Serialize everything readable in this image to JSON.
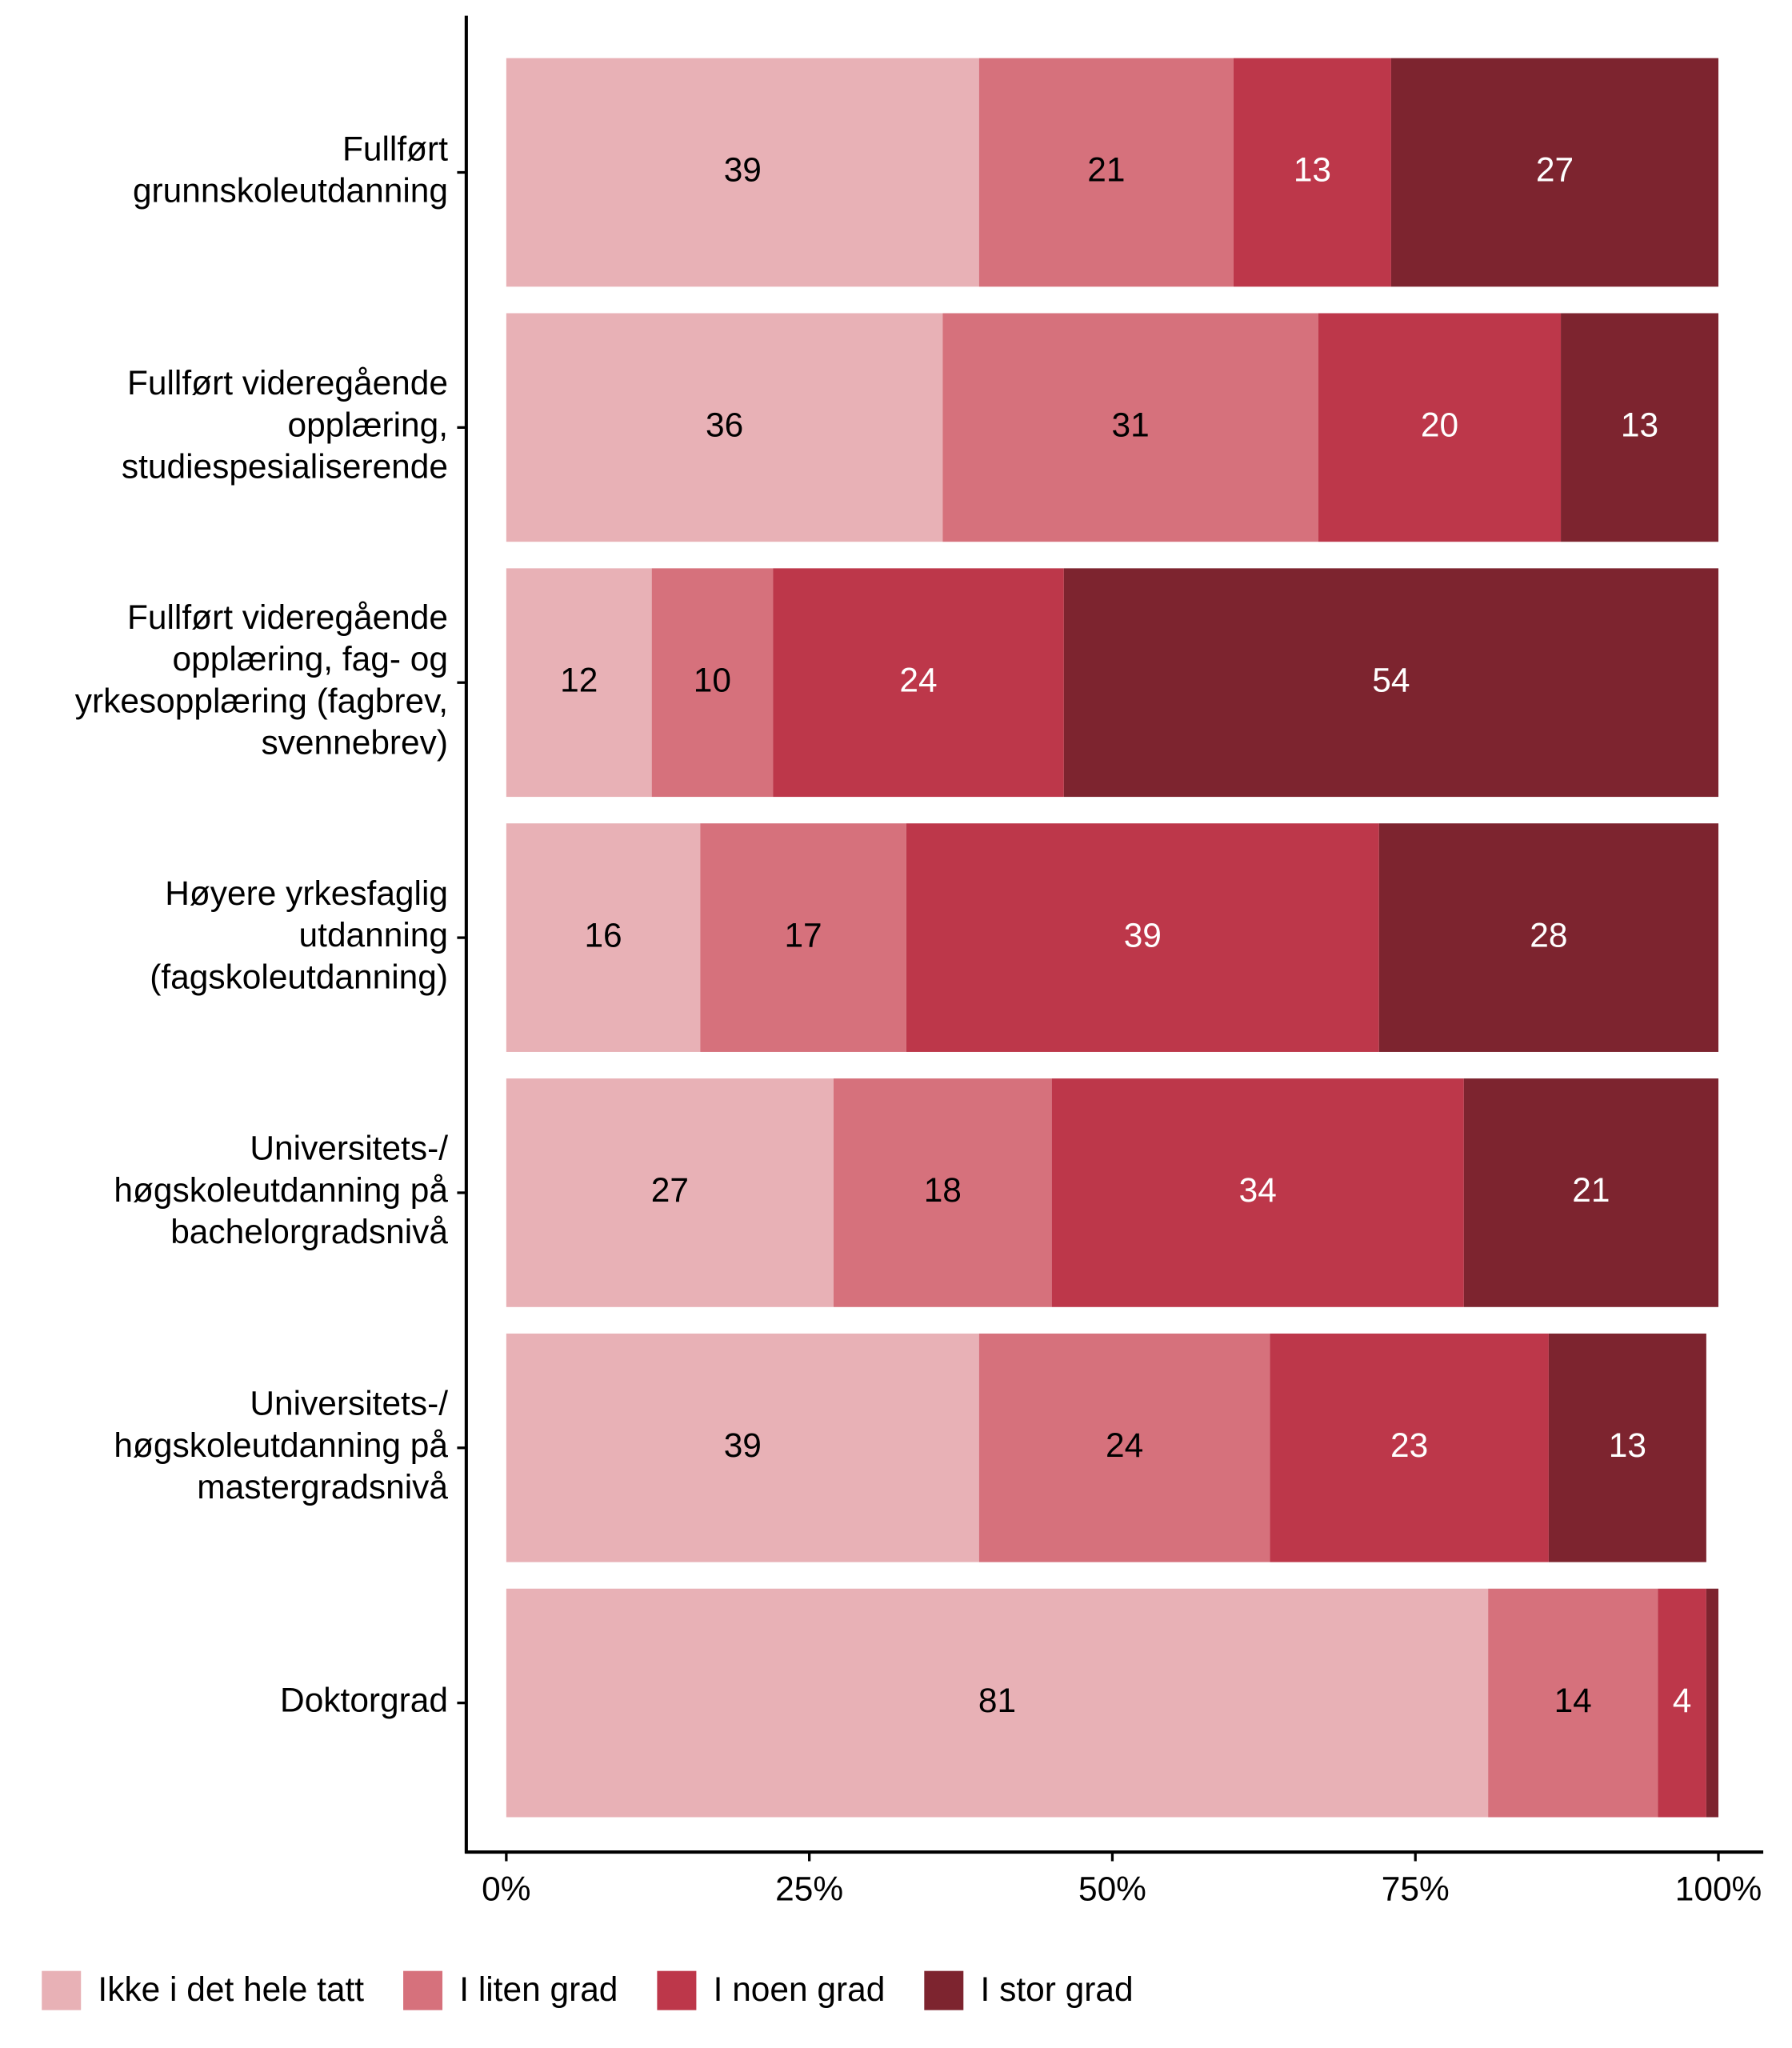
{
  "chart_data": {
    "type": "stacked-barh",
    "categories": [
      "Fullført\ngrunnskoleutdanning",
      "Fullført videregående\nopplæring,\nstudiespesialiserende",
      "Fullført videregående\nopplæring, fag- og\nyrkesopplæring (fagbrev,\nsvennebrev)",
      "Høyere yrkesfaglig\nutdanning\n(fagskoleutdanning)",
      "Universitets-/\nhøgskoleutdanning på\nbachelorgradsnivå",
      "Universitets-/\nhøgskoleutdanning på\nmastergradsnivå",
      "Doktorgrad"
    ],
    "series": [
      {
        "name": "Ikke i det hele tatt",
        "color": "#e8b1b6",
        "values": [
          39,
          36,
          12,
          16,
          27,
          39,
          81
        ]
      },
      {
        "name": "I liten grad",
        "color": "#d6717c",
        "values": [
          21,
          31,
          10,
          17,
          18,
          24,
          14
        ]
      },
      {
        "name": "I noen grad",
        "color": "#bd374a",
        "values": [
          13,
          20,
          24,
          39,
          34,
          23,
          4
        ]
      },
      {
        "name": "I stor grad",
        "color": "#7d242f",
        "values": [
          27,
          13,
          54,
          28,
          21,
          13,
          1
        ],
        "value_labels": [
          "27",
          "13",
          "54",
          "28",
          "21",
          "13",
          null
        ]
      }
    ],
    "xlim": [
      -3.3,
      103.7
    ],
    "xticks": [
      {
        "value": 0,
        "label": "0%"
      },
      {
        "value": 25,
        "label": "25%"
      },
      {
        "value": 50,
        "label": "50%"
      },
      {
        "value": 75,
        "label": "75%"
      },
      {
        "value": 100,
        "label": "100%"
      }
    ],
    "legend": "bottom"
  }
}
